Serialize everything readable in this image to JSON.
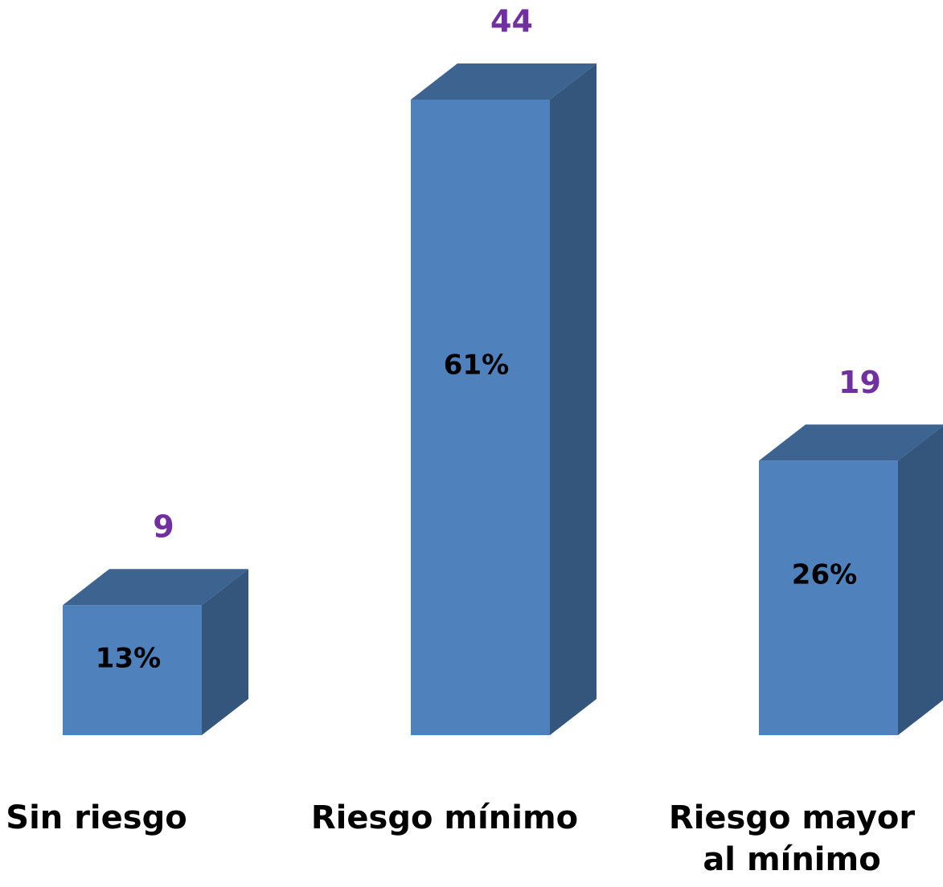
{
  "chart_data": {
    "type": "bar3d",
    "categories": [
      "Sin riesgo",
      "Riesgo mínimo",
      "Riesgo mayor al mínimo"
    ],
    "values": [
      9,
      44,
      19
    ],
    "shares": [
      13,
      61,
      26
    ],
    "share_labels": [
      "13%",
      "61%",
      "26%"
    ],
    "color": "#4f81bd",
    "top_color": "#3d6491",
    "side_color": "#34567d",
    "value_label_color": "#7030a0"
  }
}
